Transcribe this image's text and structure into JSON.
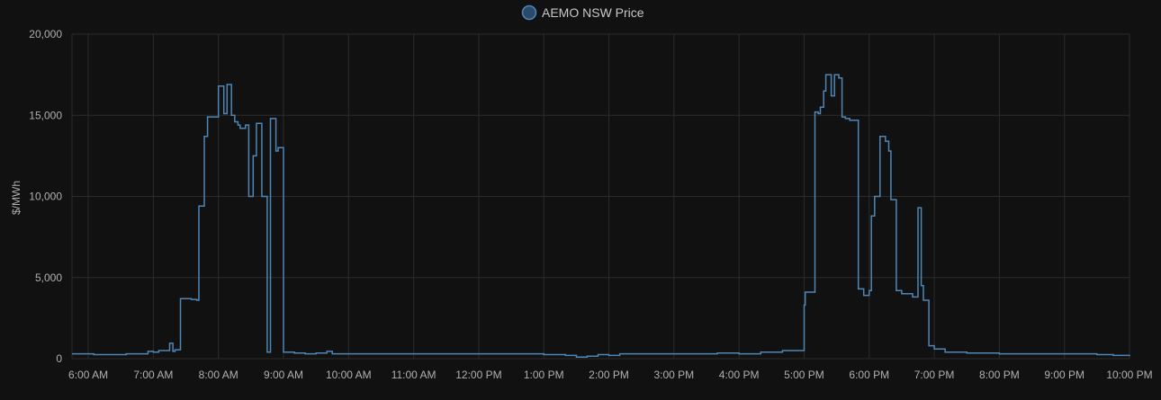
{
  "chart_data": {
    "type": "line",
    "title": "",
    "xlabel": "",
    "ylabel": "$/MWh",
    "legend_position": "top-center",
    "grid": true,
    "xlim": [
      "5:45 AM",
      "10:00 PM"
    ],
    "ylim": [
      0,
      20000
    ],
    "yticks": [
      "0",
      "5,000",
      "10,000",
      "15,000",
      "20,000"
    ],
    "xticks": [
      "6:00 AM",
      "7:00 AM",
      "8:00 AM",
      "9:00 AM",
      "10:00 AM",
      "11:00 AM",
      "12:00 PM",
      "1:00 PM",
      "2:00 PM",
      "3:00 PM",
      "4:00 PM",
      "5:00 PM",
      "6:00 PM",
      "7:00 PM",
      "8:00 PM",
      "9:00 PM",
      "10:00 PM"
    ],
    "series": [
      {
        "name": "AEMO NSW Price",
        "color": "#4f86b5",
        "step": true,
        "points": [
          [
            "5:45 AM",
            300
          ],
          [
            "6:05 AM",
            250
          ],
          [
            "6:35 AM",
            300
          ],
          [
            "6:55 AM",
            450
          ],
          [
            "7:00 AM",
            400
          ],
          [
            "7:05 AM",
            500
          ],
          [
            "7:10 AM",
            500
          ],
          [
            "7:15 AM",
            950
          ],
          [
            "7:18 AM",
            450
          ],
          [
            "7:20 AM",
            550
          ],
          [
            "7:25 AM",
            3700
          ],
          [
            "7:35 AM",
            3650
          ],
          [
            "7:40 AM",
            3600
          ],
          [
            "7:42 AM",
            9400
          ],
          [
            "7:47 AM",
            13700
          ],
          [
            "7:50 AM",
            14900
          ],
          [
            "8:00 AM",
            16800
          ],
          [
            "8:05 AM",
            15100
          ],
          [
            "8:08 AM",
            16900
          ],
          [
            "8:12 AM",
            15000
          ],
          [
            "8:15 AM",
            14600
          ],
          [
            "8:18 AM",
            14400
          ],
          [
            "8:20 AM",
            14200
          ],
          [
            "8:25 AM",
            14400
          ],
          [
            "8:28 AM",
            10000
          ],
          [
            "8:30 AM",
            10000
          ],
          [
            "8:32 AM",
            12500
          ],
          [
            "8:35 AM",
            14500
          ],
          [
            "8:40 AM",
            10000
          ],
          [
            "8:45 AM",
            400
          ],
          [
            "8:48 AM",
            14800
          ],
          [
            "8:53 AM",
            12800
          ],
          [
            "8:55 AM",
            13000
          ],
          [
            "9:00 AM",
            400
          ],
          [
            "9:10 AM",
            350
          ],
          [
            "9:20 AM",
            300
          ],
          [
            "9:30 AM",
            350
          ],
          [
            "9:40 AM",
            450
          ],
          [
            "9:45 AM",
            300
          ],
          [
            "11:00 AM",
            300
          ],
          [
            "12:00 PM",
            300
          ],
          [
            "1:00 PM",
            250
          ],
          [
            "1:20 PM",
            200
          ],
          [
            "1:30 PM",
            100
          ],
          [
            "1:40 PM",
            150
          ],
          [
            "1:50 PM",
            250
          ],
          [
            "2:00 PM",
            200
          ],
          [
            "2:10 PM",
            300
          ],
          [
            "3:00 PM",
            300
          ],
          [
            "3:40 PM",
            350
          ],
          [
            "4:00 PM",
            300
          ],
          [
            "4:20 PM",
            400
          ],
          [
            "4:40 PM",
            500
          ],
          [
            "5:00 PM",
            3300
          ],
          [
            "5:01 PM",
            4100
          ],
          [
            "5:10 PM",
            15200
          ],
          [
            "5:13 PM",
            15100
          ],
          [
            "5:15 PM",
            15500
          ],
          [
            "5:18 PM",
            16500
          ],
          [
            "5:20 PM",
            17500
          ],
          [
            "5:25 PM",
            16200
          ],
          [
            "5:28 PM",
            17500
          ],
          [
            "5:32 PM",
            17300
          ],
          [
            "5:35 PM",
            14900
          ],
          [
            "5:38 PM",
            14800
          ],
          [
            "5:42 PM",
            14700
          ],
          [
            "5:50 PM",
            4300
          ],
          [
            "5:55 PM",
            3900
          ],
          [
            "6:00 PM",
            4200
          ],
          [
            "6:02 PM",
            8800
          ],
          [
            "6:05 PM",
            10000
          ],
          [
            "6:10 PM",
            13700
          ],
          [
            "6:15 PM",
            13400
          ],
          [
            "6:18 PM",
            12800
          ],
          [
            "6:20 PM",
            9800
          ],
          [
            "6:25 PM",
            4200
          ],
          [
            "6:30 PM",
            4000
          ],
          [
            "6:40 PM",
            3800
          ],
          [
            "6:45 PM",
            9300
          ],
          [
            "6:48 PM",
            4500
          ],
          [
            "6:50 PM",
            3600
          ],
          [
            "6:55 PM",
            800
          ],
          [
            "7:00 PM",
            600
          ],
          [
            "7:10 PM",
            400
          ],
          [
            "7:30 PM",
            350
          ],
          [
            "8:00 PM",
            300
          ],
          [
            "8:30 PM",
            300
          ],
          [
            "9:00 PM",
            300
          ],
          [
            "9:30 PM",
            250
          ],
          [
            "9:45 PM",
            200
          ],
          [
            "10:00 PM",
            150
          ]
        ]
      }
    ]
  }
}
